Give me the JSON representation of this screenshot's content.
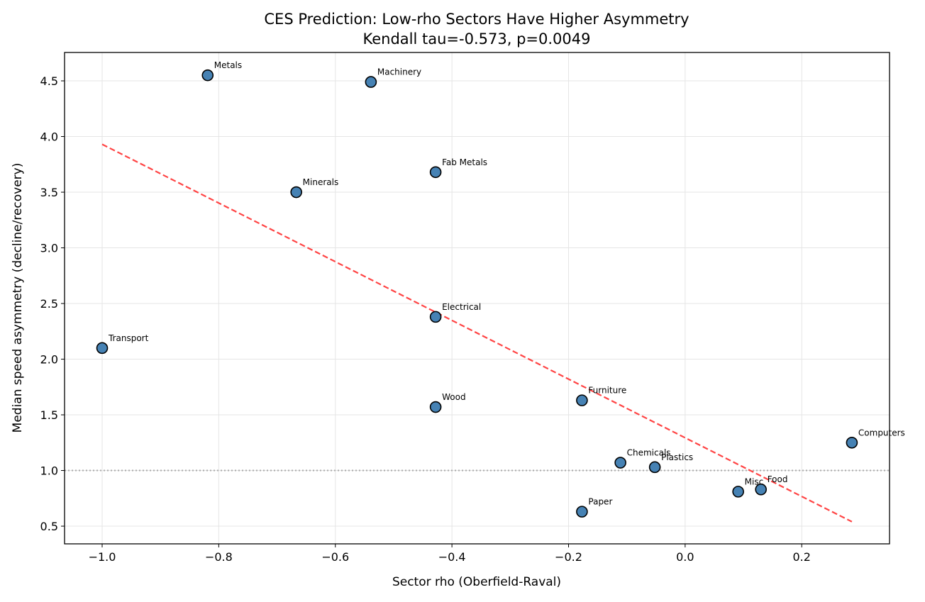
{
  "chart_data": {
    "type": "scatter",
    "title": "CES Prediction: Low-rho Sectors Have Higher Asymmetry",
    "subtitle": "Kendall tau=-0.573, p=0.0049",
    "xlabel": "Sector rho (Oberfield-Raval)",
    "ylabel": "Median speed asymmetry (decline/recovery)",
    "xlim": [
      -1.0645,
      0.3506
    ],
    "ylim": [
      0.341,
      4.755
    ],
    "xticks": [
      -1.0,
      -0.8,
      -0.6,
      -0.4,
      -0.2,
      0.0,
      0.2
    ],
    "xtick_labels": [
      "−1.0",
      "−0.8",
      "−0.6",
      "−0.4",
      "−0.2",
      "0.0",
      "0.2"
    ],
    "yticks": [
      0.5,
      1.0,
      1.5,
      2.0,
      2.5,
      3.0,
      3.5,
      4.0,
      4.5
    ],
    "ytick_labels": [
      "0.5",
      "1.0",
      "1.5",
      "2.0",
      "2.5",
      "3.0",
      "3.5",
      "4.0",
      "4.5"
    ],
    "grid": true,
    "point_color": "#4682b4",
    "trend_color": "#ff4444",
    "reference_color": "#aaaaaa",
    "points": [
      {
        "label": "Metals",
        "x": -0.819,
        "y": 4.55
      },
      {
        "label": "Machinery",
        "x": -0.539,
        "y": 4.49
      },
      {
        "label": "Fab Metals",
        "x": -0.428,
        "y": 3.68
      },
      {
        "label": "Minerals",
        "x": -0.667,
        "y": 3.5
      },
      {
        "label": "Electrical",
        "x": -0.428,
        "y": 2.38
      },
      {
        "label": "Transport",
        "x": -1.0,
        "y": 2.1
      },
      {
        "label": "Wood",
        "x": -0.428,
        "y": 1.57
      },
      {
        "label": "Furniture",
        "x": -0.177,
        "y": 1.63
      },
      {
        "label": "Computers",
        "x": 0.286,
        "y": 1.25
      },
      {
        "label": "Chemicals",
        "x": -0.111,
        "y": 1.07
      },
      {
        "label": "Plastics",
        "x": -0.052,
        "y": 1.03
      },
      {
        "label": "Misc",
        "x": 0.091,
        "y": 0.81
      },
      {
        "label": "Food",
        "x": 0.13,
        "y": 0.83
      },
      {
        "label": "Paper",
        "x": -0.177,
        "y": 0.63
      }
    ],
    "trend_line": {
      "x": [
        -1.0,
        0.286
      ],
      "y": [
        3.93,
        0.54
      ],
      "style": "dashed"
    },
    "reference_line": {
      "y": 1.0,
      "style": "dotted"
    }
  }
}
